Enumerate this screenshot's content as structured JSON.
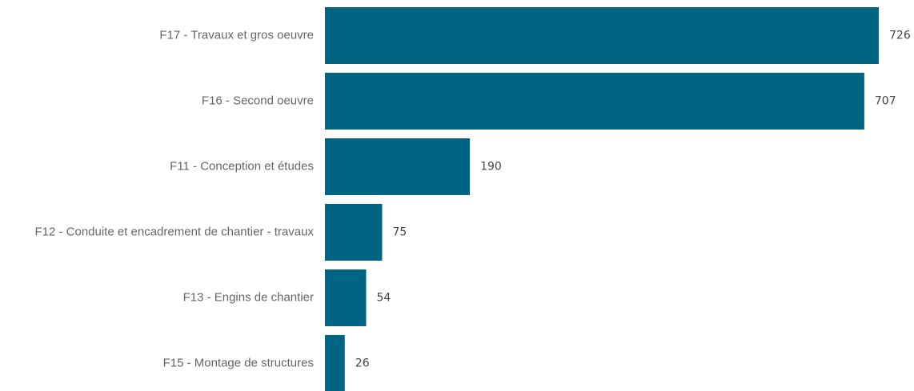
{
  "chart_data": {
    "type": "bar",
    "orientation": "horizontal",
    "categories": [
      "F17 - Travaux et gros oeuvre",
      "F16 - Second oeuvre",
      "F11 - Conception et études",
      "F12 - Conduite et encadrement de chantier - travaux",
      "F13 - Engins de chantier",
      "F15 - Montage de structures"
    ],
    "values": [
      726,
      707,
      190,
      75,
      54,
      26
    ],
    "value_labels": [
      "726",
      "707",
      "190",
      "75",
      "54",
      "26"
    ],
    "xlim": [
      0,
      726
    ],
    "grid": false,
    "legend": "none",
    "bar_color": "#006482"
  }
}
